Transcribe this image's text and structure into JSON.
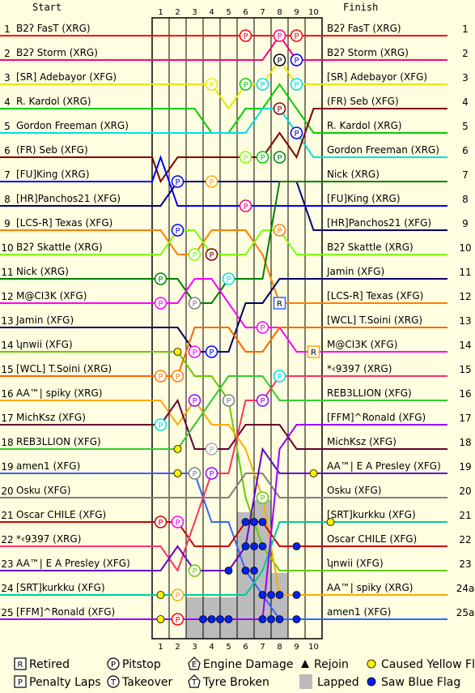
{
  "chart_data": {
    "type": "line",
    "title": "",
    "header_left": "Start",
    "header_right": "Finish",
    "laps": [
      "1",
      "2",
      "3",
      "4",
      "5",
      "6",
      "7",
      "8",
      "9",
      "10"
    ],
    "positions": [
      "1",
      "2",
      "3",
      "4",
      "5",
      "6",
      "7",
      "8",
      "9",
      "10",
      "11",
      "12",
      "13",
      "14",
      "15",
      "16",
      "17",
      "18",
      "19",
      "20",
      "21",
      "22",
      "23",
      "24",
      "25"
    ],
    "end_positions": [
      "1",
      "2",
      "3",
      "4",
      "5",
      "6",
      "7",
      "8",
      "9",
      "10",
      "11",
      "12",
      "13",
      "14",
      "15",
      "16",
      "17",
      "18",
      "19",
      "20",
      "21",
      "22",
      "23",
      "24a",
      "25a"
    ],
    "start_order": [
      "B2ʔ FasT (XRG)",
      "B2ʔ Storm (XRG)",
      "[SR] Adebayor (XFG)",
      "R. Kardol (XRG)",
      "Gordon Freeman (XRG)",
      "(FR) Seb (XFG)",
      "[FU]King (XRG)",
      "[HR]Panchos21 (XFG)",
      "[LCS-R] Texas (XFG)",
      "B2ʔ Skattle (XRG)",
      "Nick (XRG)",
      "M@CI3K (XFG)",
      "Jamin (XFG)",
      "ʮnwii (XFG)",
      "[WCL] T.Soini (XRG)",
      "AA™| spiky (XRG)",
      "MichKsz (XFG)",
      "REB3LLION (XFG)",
      "amen1 (XFG)",
      "Osku (XFG)",
      "Oscar CHILE (XFG)",
      "*‹9397 (XRG)",
      "AA™| E A Presley (XFG)",
      "[SRT]kurkku (XFG)",
      "[FFM]^Ronald (XFG)"
    ],
    "finish_order": [
      "B2ʔ FasT (XRG)",
      "B2ʔ Storm (XRG)",
      "[SR] Adebayor (XFG)",
      "(FR) Seb (XFG)",
      "R. Kardol (XRG)",
      "Gordon Freeman (XRG)",
      "Nick (XRG)",
      "[FU]King (XRG)",
      "[HR]Panchos21 (XFG)",
      "B2ʔ Skattle (XRG)",
      "Jamin (XFG)",
      "[LCS-R] Texas (XFG)",
      "[WCL] T.Soini (XRG)",
      "M@CI3K (XFG)",
      "*‹9397 (XRG)",
      "REB3LLION (XFG)",
      "[FFM]^Ronald (XFG)",
      "MichKsz (XFG)",
      "AA™| E A Presley (XFG)",
      "Osku (XFG)",
      "[SRT]kurkku (XFG)",
      "Oscar CHILE (XFG)",
      "ʮnwii (XFG)",
      "AA™| spiky (XRG)",
      "amen1 (XFG)"
    ],
    "series": [
      {
        "name": "B2ʔ FasT (XRG)",
        "color": "#ff0000",
        "positions": [
          1,
          1,
          1,
          1,
          1,
          1,
          1,
          1,
          1,
          1
        ]
      },
      {
        "name": "B2ʔ Storm (XRG)",
        "color": "#ff0080",
        "positions": [
          2,
          2,
          2,
          2,
          2,
          2,
          2,
          1,
          2,
          2
        ]
      },
      {
        "name": "[SR] Adebayor (XFG)",
        "color": "#e8e800",
        "positions": [
          3,
          3,
          3,
          3,
          4,
          3,
          3,
          2,
          3,
          3
        ]
      },
      {
        "name": "R. Kardol (XRG)",
        "color": "#00d000",
        "positions": [
          4,
          4,
          4,
          5,
          5,
          4,
          4,
          3,
          4,
          5
        ]
      },
      {
        "name": "Gordon Freeman (XRG)",
        "color": "#00e0e0",
        "positions": [
          5,
          5,
          5,
          5,
          5,
          5,
          4,
          4,
          5,
          6
        ]
      },
      {
        "name": "(FR) Seb (XFG)",
        "color": "#800000",
        "positions": [
          7,
          6,
          6,
          6,
          6,
          6,
          6,
          5,
          6,
          4
        ]
      },
      {
        "name": "[FU]King (XRG)",
        "color": "#0000ff",
        "positions": [
          6,
          8,
          8,
          8,
          8,
          8,
          8,
          8,
          8,
          8
        ]
      },
      {
        "name": "[HR]Panchos21 (XFG)",
        "color": "#000080",
        "positions": [
          8,
          7,
          7,
          7,
          7,
          7,
          7,
          7,
          7,
          9
        ]
      },
      {
        "name": "[LCS-R] Texas (XFG)",
        "color": "#ff8000",
        "positions": [
          9,
          10,
          10,
          9,
          9,
          9,
          10,
          12,
          12,
          12
        ]
      },
      {
        "name": "B2ʔ Skattle (XRG)",
        "color": "#80ff00",
        "positions": [
          10,
          9,
          9,
          10,
          10,
          10,
          9,
          9,
          10,
          10
        ]
      },
      {
        "name": "Nick (XRG)",
        "color": "#008000",
        "positions": [
          11,
          11,
          12,
          12,
          11,
          11,
          11,
          7,
          7,
          7
        ]
      },
      {
        "name": "M@CI3K (XFG)",
        "color": "#ff00ff",
        "positions": [
          12,
          12,
          11,
          11,
          12,
          13,
          13,
          13,
          14,
          14
        ]
      },
      {
        "name": "Jamin (XFG)",
        "color": "#000066",
        "positions": [
          13,
          13,
          14,
          14,
          14,
          12,
          12,
          11,
          11,
          11
        ]
      },
      {
        "name": "ʮnwii (XFG)",
        "color": "#66cc00",
        "positions": [
          14,
          14,
          15,
          15,
          16,
          20,
          22,
          23,
          23,
          23
        ]
      },
      {
        "name": "[WCL] T.Soini (XRG)",
        "color": "#ff6600",
        "positions": [
          15,
          15,
          13,
          13,
          13,
          14,
          14,
          13,
          13,
          13
        ]
      },
      {
        "name": "AA™| spiky (XRG)",
        "color": "#ffaa00",
        "positions": [
          16,
          17,
          16,
          17,
          17,
          18,
          20,
          24,
          24,
          24
        ]
      },
      {
        "name": "MichKsz (XFG)",
        "color": "#660033",
        "positions": [
          17,
          16,
          18,
          18,
          18,
          17,
          17,
          17,
          18,
          18
        ]
      },
      {
        "name": "REB3LLION (XFG)",
        "color": "#33cc33",
        "positions": [
          18,
          18,
          17,
          16,
          15,
          15,
          15,
          16,
          16,
          16
        ]
      },
      {
        "name": "amen1 (XFG)",
        "color": "#3366ff",
        "positions": [
          19,
          19,
          19,
          21,
          21,
          23,
          24,
          25,
          25,
          25
        ]
      },
      {
        "name": "Osku (XFG)",
        "color": "#808080",
        "positions": [
          20,
          20,
          20,
          20,
          20,
          19,
          19,
          20,
          20,
          20
        ]
      },
      {
        "name": "Oscar CHILE (XFG)",
        "color": "#cc0000",
        "positions": [
          21,
          21,
          22,
          22,
          22,
          21,
          21,
          22,
          22,
          22
        ]
      },
      {
        "name": "*‹9397 (XRG)",
        "color": "#ff3366",
        "positions": [
          22,
          23,
          21,
          19,
          19,
          16,
          16,
          15,
          15,
          15
        ]
      },
      {
        "name": "AA™| E A Presley (XFG)",
        "color": "#6600cc",
        "positions": [
          23,
          22,
          23,
          23,
          23,
          22,
          18,
          19,
          19,
          19
        ]
      },
      {
        "name": "[SRT]kurkku (XFG)",
        "color": "#00cc99",
        "positions": [
          24,
          24,
          24,
          24,
          24,
          24,
          23,
          21,
          21,
          21
        ]
      },
      {
        "name": "[FFM]^Ronald (XFG)",
        "color": "#9900ff",
        "positions": [
          25,
          25,
          25,
          25,
          25,
          25,
          25,
          18,
          17,
          17
        ]
      }
    ],
    "markers": [
      {
        "type": "P",
        "lap": 5,
        "pos": 1,
        "color": "#ff0000"
      },
      {
        "type": "P",
        "lap": 7,
        "pos": 1,
        "color": "#ff0080"
      },
      {
        "type": "P",
        "lap": 8,
        "pos": 1,
        "color": "#ff0000"
      },
      {
        "type": "P",
        "lap": 8,
        "pos": 2,
        "color": "#ff0080"
      },
      {
        "type": "P",
        "lap": 7,
        "pos": 2,
        "color": "#000000"
      },
      {
        "type": "P",
        "lap": 8,
        "pos": 2,
        "color": "#0000ff"
      },
      {
        "type": "P",
        "lap": 3,
        "pos": 3,
        "color": "#e8e800"
      },
      {
        "type": "P",
        "lap": 5,
        "pos": 3,
        "color": "#00d000"
      },
      {
        "type": "P",
        "lap": 6,
        "pos": 3,
        "color": "#00e0e0"
      },
      {
        "type": "P",
        "lap": 8,
        "pos": 3,
        "color": "#00e0e0"
      },
      {
        "type": "P",
        "lap": 7,
        "pos": 4,
        "color": "#800000"
      },
      {
        "type": "P",
        "lap": 8,
        "pos": 5,
        "color": "#0000ff"
      },
      {
        "type": "P",
        "lap": 5,
        "pos": 6,
        "color": "#80ff00"
      },
      {
        "type": "P",
        "lap": 6,
        "pos": 6,
        "color": "#00d000"
      },
      {
        "type": "P",
        "lap": 7,
        "pos": 6,
        "color": "#008000"
      },
      {
        "type": "P",
        "lap": 1,
        "pos": 7,
        "color": "#0000ff"
      },
      {
        "type": "P",
        "lap": 3,
        "pos": 7,
        "color": "#ffaa00"
      },
      {
        "type": "P",
        "lap": 5,
        "pos": 8,
        "color": "#ff0080"
      },
      {
        "type": "P",
        "lap": 1,
        "pos": 9,
        "color": "#0000ff"
      },
      {
        "type": "P",
        "lap": 7,
        "pos": 9,
        "color": "#ff8000"
      },
      {
        "type": "P",
        "lap": 2,
        "pos": 10,
        "color": "#80ff00"
      },
      {
        "type": "P",
        "lap": 3,
        "pos": 10,
        "color": "#800000"
      },
      {
        "type": "P",
        "lap": 0,
        "pos": 11,
        "color": "#008000"
      },
      {
        "type": "P",
        "lap": 4,
        "pos": 11,
        "color": "#00e0e0"
      },
      {
        "type": "P",
        "lap": 0,
        "pos": 12,
        "color": "#ff00ff"
      },
      {
        "type": "P",
        "lap": 2,
        "pos": 12,
        "color": "#808080"
      },
      {
        "type": "R",
        "lap": 7,
        "pos": 12,
        "color": "#3366ff"
      },
      {
        "type": "P",
        "lap": 6,
        "pos": 13,
        "color": "#ff00ff"
      },
      {
        "type": "P",
        "lap": 2,
        "pos": 14,
        "color": "#ff00ff"
      },
      {
        "type": "P",
        "lap": 3,
        "pos": 14,
        "color": "#0000ff"
      },
      {
        "type": "R",
        "lap": 9,
        "pos": 14,
        "color": "#ffaa00"
      },
      {
        "type": "P",
        "lap": 0,
        "pos": 15,
        "color": "#ff8000"
      },
      {
        "type": "P",
        "lap": 1,
        "pos": 15,
        "color": "#ff8000"
      },
      {
        "type": "P",
        "lap": 7,
        "pos": 15,
        "color": "#00e0e0"
      },
      {
        "type": "P",
        "lap": 2,
        "pos": 16,
        "color": "#9900ff"
      },
      {
        "type": "P",
        "lap": 4,
        "pos": 16,
        "color": "#808080"
      },
      {
        "type": "P",
        "lap": 6,
        "pos": 16,
        "color": "#9900ff"
      },
      {
        "type": "P",
        "lap": 0,
        "pos": 17,
        "color": "#00e0e0"
      },
      {
        "type": "P",
        "lap": 3,
        "pos": 18,
        "color": "#aaaaaa"
      },
      {
        "type": "P",
        "lap": 2,
        "pos": 19,
        "color": "#808080"
      },
      {
        "type": "P",
        "lap": 3,
        "pos": 19,
        "color": "#9900ff"
      },
      {
        "type": "P",
        "lap": 6,
        "pos": 20,
        "color": "#66cc00"
      },
      {
        "type": "P",
        "lap": 0,
        "pos": 21,
        "color": "#cc0000"
      },
      {
        "type": "P",
        "lap": 1,
        "pos": 21,
        "color": "#ff00ff"
      },
      {
        "type": "P",
        "lap": 2,
        "pos": 23,
        "color": "#66cc00"
      },
      {
        "type": "P",
        "lap": 1,
        "pos": 24,
        "color": "#ffaa00"
      },
      {
        "type": "P",
        "lap": 1,
        "pos": 25,
        "color": "#ff0000"
      }
    ],
    "yellow_dots": [
      {
        "lap": 1,
        "pos": 14
      },
      {
        "lap": 1,
        "pos": 18
      },
      {
        "lap": 1,
        "pos": 19
      },
      {
        "lap": 0,
        "pos": 24
      },
      {
        "lap": 0,
        "pos": 25
      },
      {
        "lap": 9,
        "pos": 19
      },
      {
        "lap": 10,
        "pos": 21
      }
    ],
    "blue_dots": [
      {
        "lap": 5,
        "pos": 21
      },
      {
        "lap": 5.5,
        "pos": 21
      },
      {
        "lap": 6,
        "pos": 21
      },
      {
        "lap": 5,
        "pos": 22
      },
      {
        "lap": 5.5,
        "pos": 22
      },
      {
        "lap": 6,
        "pos": 22
      },
      {
        "lap": 4,
        "pos": 23
      },
      {
        "lap": 5,
        "pos": 23
      },
      {
        "lap": 5.5,
        "pos": 23
      },
      {
        "lap": 6,
        "pos": 24
      },
      {
        "lap": 6.5,
        "pos": 24
      },
      {
        "lap": 7,
        "pos": 24
      },
      {
        "lap": 2.5,
        "pos": 25
      },
      {
        "lap": 3,
        "pos": 25
      },
      {
        "lap": 3.5,
        "pos": 25
      },
      {
        "lap": 4,
        "pos": 25
      },
      {
        "lap": 6,
        "pos": 25
      },
      {
        "lap": 6.5,
        "pos": 25
      },
      {
        "lap": 7,
        "pos": 25
      },
      {
        "lap": 8,
        "pos": 22
      },
      {
        "lap": 8,
        "pos": 25
      },
      {
        "lap": 8,
        "pos": 24
      }
    ],
    "lapped_regions": [
      {
        "lap_from": 2,
        "lap_to": 5,
        "pos_from": 24.5,
        "pos_to": 25.8
      },
      {
        "lap_from": 5,
        "lap_to": 6,
        "pos_from": 21,
        "pos_to": 25.8
      },
      {
        "lap_from": 6,
        "lap_to": 7,
        "pos_from": 20.5,
        "pos_to": 25.8
      },
      {
        "lap_from": 7,
        "lap_to": 8,
        "pos_from": 23.5,
        "pos_to": 25.8
      }
    ],
    "legend": [
      {
        "symbol": "R",
        "label": "Retired"
      },
      {
        "symbol": "P-circle",
        "label": "Pitstop"
      },
      {
        "symbol": "E-house",
        "label": "Engine Damage"
      },
      {
        "symbol": "triangle",
        "label": "Rejoin"
      },
      {
        "symbol": "yellow-dot",
        "label": "Caused Yellow Flag"
      },
      {
        "symbol": "P-box",
        "label": "Penalty Laps"
      },
      {
        "symbol": "T-circle",
        "label": "Takeover"
      },
      {
        "symbol": "T-house",
        "label": "Tyre Broken"
      },
      {
        "symbol": "gray-box",
        "label": "Lapped"
      },
      {
        "symbol": "blue-dot",
        "label": "Saw Blue Flag"
      }
    ]
  }
}
